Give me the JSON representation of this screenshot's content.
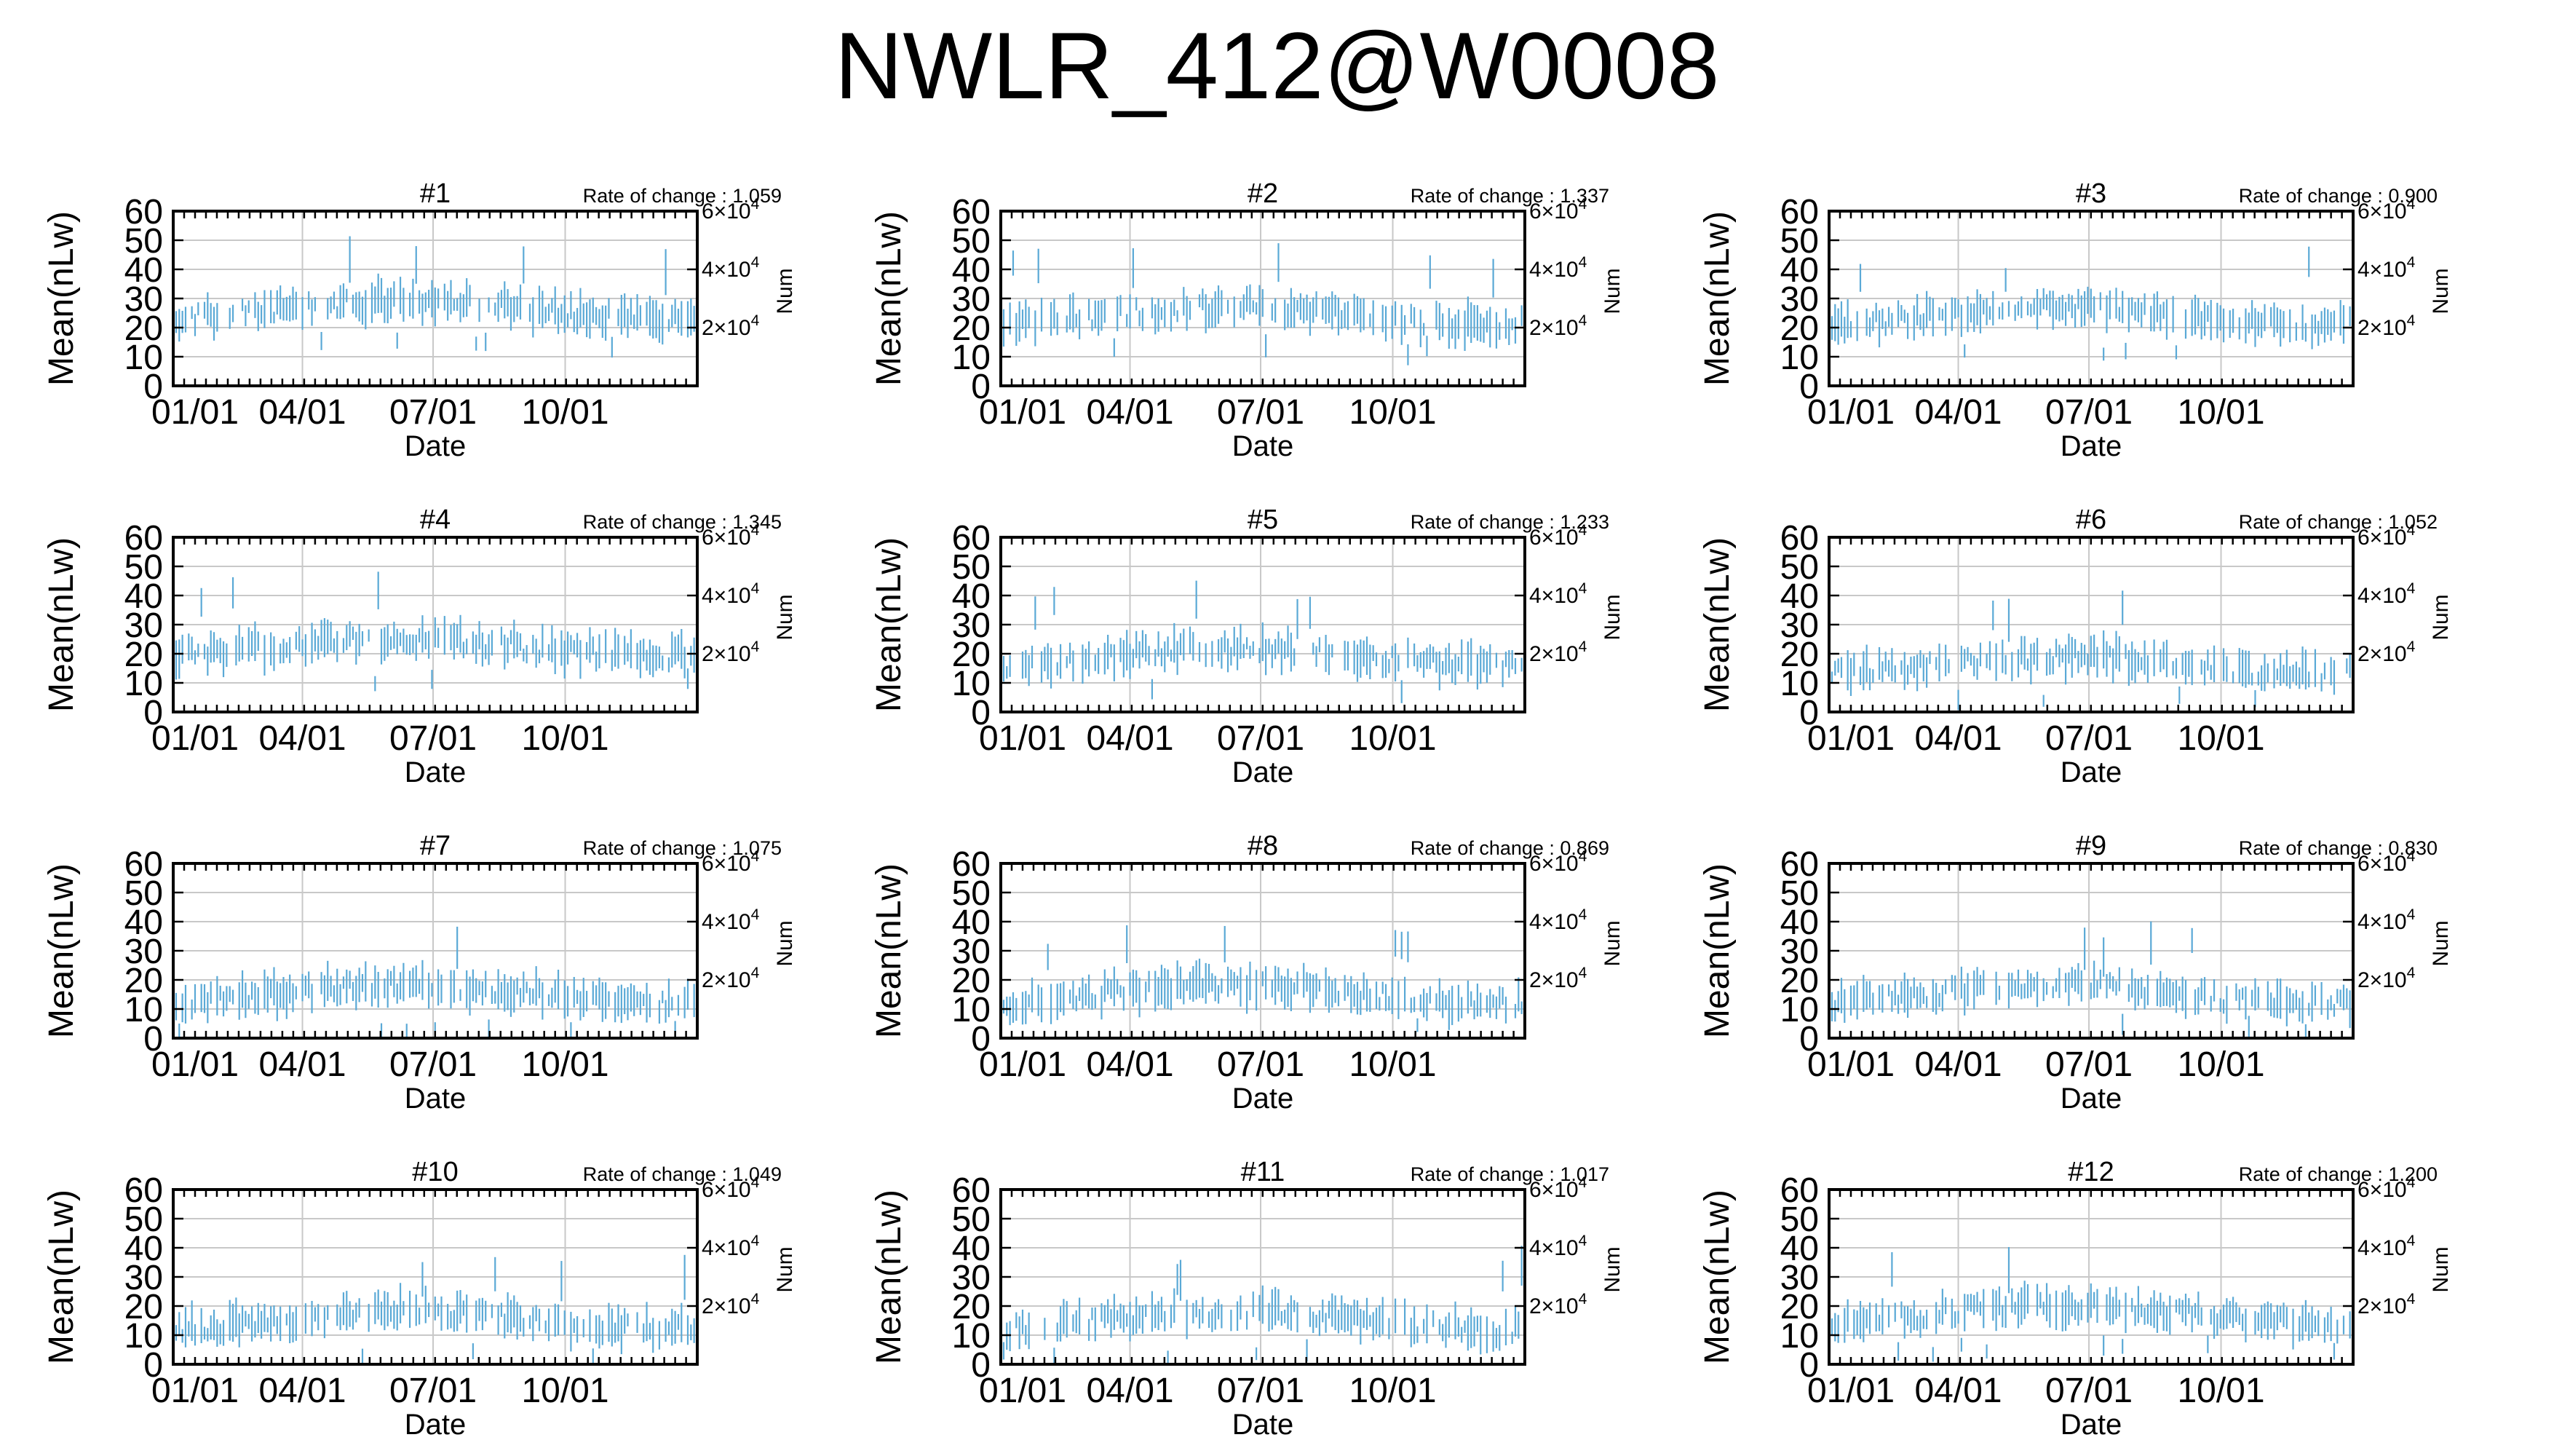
{
  "figure": {
    "title": "NWLR_412@W0008",
    "series_color": "#5aa9d6",
    "grid_color": "#c8c8c8"
  },
  "chart_data": [
    {
      "type": "error-bar",
      "title": "#1",
      "rate_of_change": "Rate of change : 1.059",
      "ylabel": "Mean(nLw)",
      "y2label": "Num",
      "xlabel": "Date",
      "ylim": [
        0,
        60
      ],
      "yticks": [
        "0",
        "10",
        "20",
        "30",
        "40",
        "50",
        "60"
      ],
      "y2ticks": [
        {
          "exp": "2×10",
          "pow": "4",
          "value": 20000
        },
        {
          "exp": "4×10",
          "pow": "4",
          "value": 40000
        },
        {
          "exp": "6×10",
          "pow": "4",
          "value": 60000
        }
      ],
      "xticks": [
        "01/01",
        "04/01",
        "07/01",
        "10/01"
      ],
      "grid": true,
      "mean_level": 26,
      "seed": 11
    },
    {
      "type": "error-bar",
      "title": "#2",
      "rate_of_change": "Rate of change : 1.337",
      "ylabel": "Mean(nLw)",
      "y2label": "Num",
      "xlabel": "Date",
      "ylim": [
        0,
        60
      ],
      "yticks": [
        "0",
        "10",
        "20",
        "30",
        "40",
        "50",
        "60"
      ],
      "y2ticks": [
        {
          "exp": "2×10",
          "pow": "4",
          "value": 20000
        },
        {
          "exp": "4×10",
          "pow": "4",
          "value": 40000
        },
        {
          "exp": "6×10",
          "pow": "4",
          "value": 60000
        }
      ],
      "xticks": [
        "01/01",
        "04/01",
        "07/01",
        "10/01"
      ],
      "grid": true,
      "mean_level": 24,
      "seed": 22
    },
    {
      "type": "error-bar",
      "title": "#3",
      "rate_of_change": "Rate of change : 0.900",
      "ylabel": "Mean(nLw)",
      "y2label": "Num",
      "xlabel": "Date",
      "ylim": [
        0,
        60
      ],
      "yticks": [
        "0",
        "10",
        "20",
        "30",
        "40",
        "50",
        "60"
      ],
      "y2ticks": [
        {
          "exp": "2×10",
          "pow": "4",
          "value": 20000
        },
        {
          "exp": "4×10",
          "pow": "4",
          "value": 40000
        },
        {
          "exp": "6×10",
          "pow": "4",
          "value": 60000
        }
      ],
      "xticks": [
        "01/01",
        "04/01",
        "07/01",
        "10/01"
      ],
      "grid": true,
      "mean_level": 24,
      "seed": 33
    },
    {
      "type": "error-bar",
      "title": "#4",
      "rate_of_change": "Rate of change : 1.345",
      "ylabel": "Mean(nLw)",
      "y2label": "Num",
      "xlabel": "Date",
      "ylim": [
        0,
        60
      ],
      "yticks": [
        "0",
        "10",
        "20",
        "30",
        "40",
        "50",
        "60"
      ],
      "y2ticks": [
        {
          "exp": "2×10",
          "pow": "4",
          "value": 20000
        },
        {
          "exp": "4×10",
          "pow": "4",
          "value": 40000
        },
        {
          "exp": "6×10",
          "pow": "4",
          "value": 60000
        }
      ],
      "xticks": [
        "01/01",
        "04/01",
        "07/01",
        "10/01"
      ],
      "grid": true,
      "mean_level": 22,
      "seed": 44
    },
    {
      "type": "error-bar",
      "title": "#5",
      "rate_of_change": "Rate of change : 1.233",
      "ylabel": "Mean(nLw)",
      "y2label": "Num",
      "xlabel": "Date",
      "ylim": [
        0,
        60
      ],
      "yticks": [
        "0",
        "10",
        "20",
        "30",
        "40",
        "50",
        "60"
      ],
      "y2ticks": [
        {
          "exp": "2×10",
          "pow": "4",
          "value": 20000
        },
        {
          "exp": "4×10",
          "pow": "4",
          "value": 40000
        },
        {
          "exp": "6×10",
          "pow": "4",
          "value": 60000
        }
      ],
      "xticks": [
        "01/01",
        "04/01",
        "07/01",
        "10/01"
      ],
      "grid": true,
      "mean_level": 19,
      "seed": 55
    },
    {
      "type": "error-bar",
      "title": "#6",
      "rate_of_change": "Rate of change : 1.052",
      "ylabel": "Mean(nLw)",
      "y2label": "Num",
      "xlabel": "Date",
      "ylim": [
        0,
        60
      ],
      "yticks": [
        "0",
        "10",
        "20",
        "30",
        "40",
        "50",
        "60"
      ],
      "y2ticks": [
        {
          "exp": "2×10",
          "pow": "4",
          "value": 20000
        },
        {
          "exp": "4×10",
          "pow": "4",
          "value": 40000
        },
        {
          "exp": "6×10",
          "pow": "4",
          "value": 60000
        }
      ],
      "xticks": [
        "01/01",
        "04/01",
        "07/01",
        "10/01"
      ],
      "grid": true,
      "mean_level": 16,
      "seed": 66
    },
    {
      "type": "error-bar",
      "title": "#7",
      "rate_of_change": "Rate of change : 1.075",
      "ylabel": "Mean(nLw)",
      "y2label": "Num",
      "xlabel": "Date",
      "ylim": [
        0,
        60
      ],
      "yticks": [
        "0",
        "10",
        "20",
        "30",
        "40",
        "50",
        "60"
      ],
      "y2ticks": [
        {
          "exp": "2×10",
          "pow": "4",
          "value": 20000
        },
        {
          "exp": "4×10",
          "pow": "4",
          "value": 40000
        },
        {
          "exp": "6×10",
          "pow": "4",
          "value": 60000
        }
      ],
      "xticks": [
        "01/01",
        "04/01",
        "07/01",
        "10/01"
      ],
      "grid": true,
      "mean_level": 15,
      "seed": 77
    },
    {
      "type": "error-bar",
      "title": "#8",
      "rate_of_change": "Rate of change : 0.869",
      "ylabel": "Mean(nLw)",
      "y2label": "Num",
      "xlabel": "Date",
      "ylim": [
        0,
        60
      ],
      "yticks": [
        "0",
        "10",
        "20",
        "30",
        "40",
        "50",
        "60"
      ],
      "y2ticks": [
        {
          "exp": "2×10",
          "pow": "4",
          "value": 20000
        },
        {
          "exp": "4×10",
          "pow": "4",
          "value": 40000
        },
        {
          "exp": "6×10",
          "pow": "4",
          "value": 60000
        }
      ],
      "xticks": [
        "01/01",
        "04/01",
        "07/01",
        "10/01"
      ],
      "grid": true,
      "mean_level": 15,
      "seed": 88
    },
    {
      "type": "error-bar",
      "title": "#9",
      "rate_of_change": "Rate of change : 0.830",
      "ylabel": "Mean(nLw)",
      "y2label": "Num",
      "xlabel": "Date",
      "ylim": [
        0,
        60
      ],
      "yticks": [
        "0",
        "10",
        "20",
        "30",
        "40",
        "50",
        "60"
      ],
      "y2ticks": [
        {
          "exp": "2×10",
          "pow": "4",
          "value": 20000
        },
        {
          "exp": "4×10",
          "pow": "4",
          "value": 40000
        },
        {
          "exp": "6×10",
          "pow": "4",
          "value": 60000
        }
      ],
      "xticks": [
        "01/01",
        "04/01",
        "07/01",
        "10/01"
      ],
      "grid": true,
      "mean_level": 15,
      "seed": 99
    },
    {
      "type": "error-bar",
      "title": "#10",
      "rate_of_change": "Rate of change : 1.049",
      "ylabel": "Mean(nLw)",
      "y2label": "Num",
      "xlabel": "Date",
      "ylim": [
        0,
        60
      ],
      "yticks": [
        "0",
        "10",
        "20",
        "30",
        "40",
        "50",
        "60"
      ],
      "y2ticks": [
        {
          "exp": "2×10",
          "pow": "4",
          "value": 20000
        },
        {
          "exp": "4×10",
          "pow": "4",
          "value": 40000
        },
        {
          "exp": "6×10",
          "pow": "4",
          "value": 60000
        }
      ],
      "xticks": [
        "01/01",
        "04/01",
        "07/01",
        "10/01"
      ],
      "grid": true,
      "mean_level": 15,
      "seed": 110
    },
    {
      "type": "error-bar",
      "title": "#11",
      "rate_of_change": "Rate of change : 1.017",
      "ylabel": "Mean(nLw)",
      "y2label": "Num",
      "xlabel": "Date",
      "ylim": [
        0,
        60
      ],
      "yticks": [
        "0",
        "10",
        "20",
        "30",
        "40",
        "50",
        "60"
      ],
      "y2ticks": [
        {
          "exp": "2×10",
          "pow": "4",
          "value": 20000
        },
        {
          "exp": "4×10",
          "pow": "4",
          "value": 40000
        },
        {
          "exp": "6×10",
          "pow": "4",
          "value": 60000
        }
      ],
      "xticks": [
        "01/01",
        "04/01",
        "07/01",
        "10/01"
      ],
      "grid": true,
      "mean_level": 15,
      "seed": 121
    },
    {
      "type": "error-bar",
      "title": "#12",
      "rate_of_change": "Rate of change : 1.200",
      "ylabel": "Mean(nLw)",
      "y2label": "Num",
      "xlabel": "Date",
      "ylim": [
        0,
        60
      ],
      "yticks": [
        "0",
        "10",
        "20",
        "30",
        "40",
        "50",
        "60"
      ],
      "y2ticks": [
        {
          "exp": "2×10",
          "pow": "4",
          "value": 20000
        },
        {
          "exp": "4×10",
          "pow": "4",
          "value": 40000
        },
        {
          "exp": "6×10",
          "pow": "4",
          "value": 60000
        }
      ],
      "xticks": [
        "01/01",
        "04/01",
        "07/01",
        "10/01"
      ],
      "grid": true,
      "mean_level": 17,
      "seed": 132
    }
  ]
}
